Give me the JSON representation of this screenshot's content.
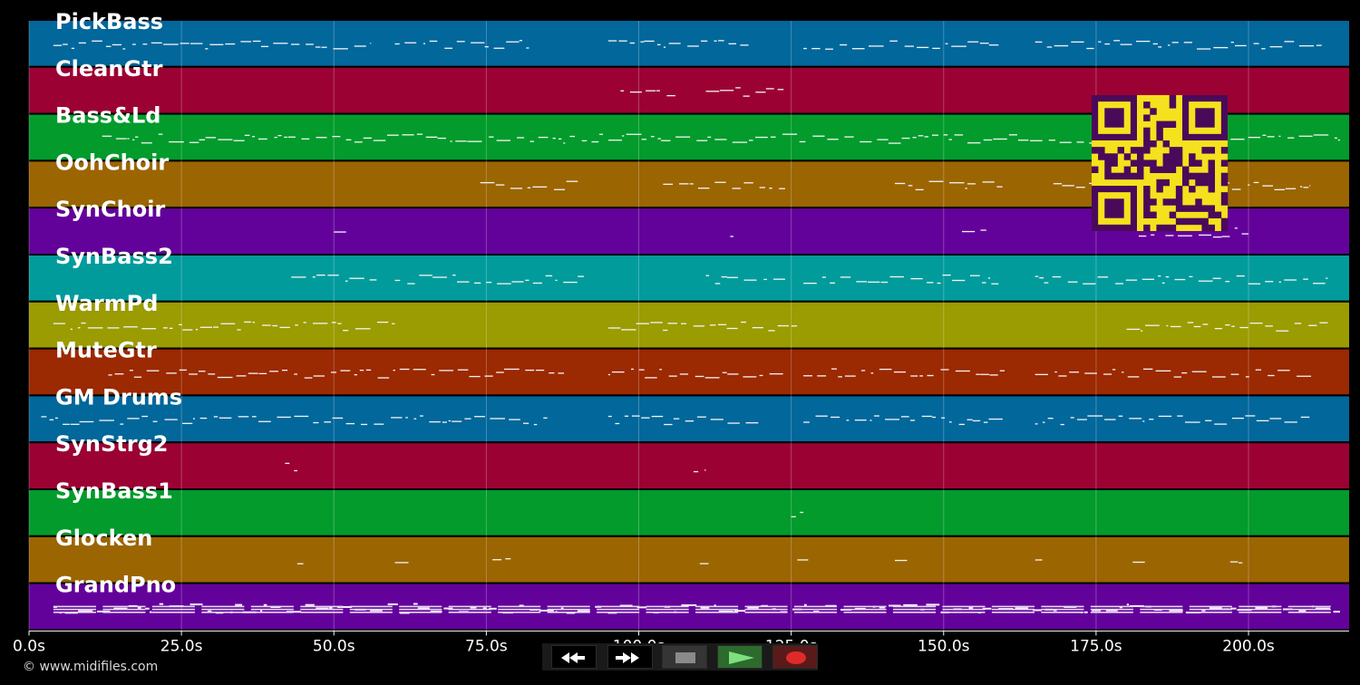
{
  "tracks": [
    {
      "name": "PickBass",
      "color": "#02679b"
    },
    {
      "name": "CleanGtr",
      "color": "#9b0233"
    },
    {
      "name": "Bass&Ld",
      "color": "#029b2c"
    },
    {
      "name": "OohChoir",
      "color": "#9b6502"
    },
    {
      "name": "SynChoir",
      "color": "#63029b"
    },
    {
      "name": "SynBass2",
      "color": "#029b9b"
    },
    {
      "name": "WarmPd",
      "color": "#9b9b02"
    },
    {
      "name": "MuteGtr",
      "color": "#9b2902"
    },
    {
      "name": "GM Drums",
      "color": "#02679b"
    },
    {
      "name": "SynStrg2",
      "color": "#9b0233"
    },
    {
      "name": "SynBass1",
      "color": "#029b2c"
    },
    {
      "name": "Glocken",
      "color": "#9b6502"
    },
    {
      "name": "GrandPno",
      "color": "#63029b"
    }
  ],
  "timeline": {
    "max_seconds": 216.5,
    "ticks": [
      "0.0s",
      "25.0s",
      "50.0s",
      "75.0s",
      "100.0s",
      "125.0s",
      "150.0s",
      "175.0s",
      "200.0s"
    ],
    "tick_values": [
      0,
      25,
      50,
      75,
      100,
      125,
      150,
      175,
      200
    ]
  },
  "transport": {
    "rewind_icon": "rewind-icon",
    "fastforward_icon": "fast-forward-icon",
    "stop_icon": "stop-icon",
    "play_icon": "play-icon",
    "record_icon": "record-icon"
  },
  "qr_code": {
    "color": "#f5e11d",
    "dark": "#4a0a5a"
  },
  "copyright": "© www.midifiles.com"
}
